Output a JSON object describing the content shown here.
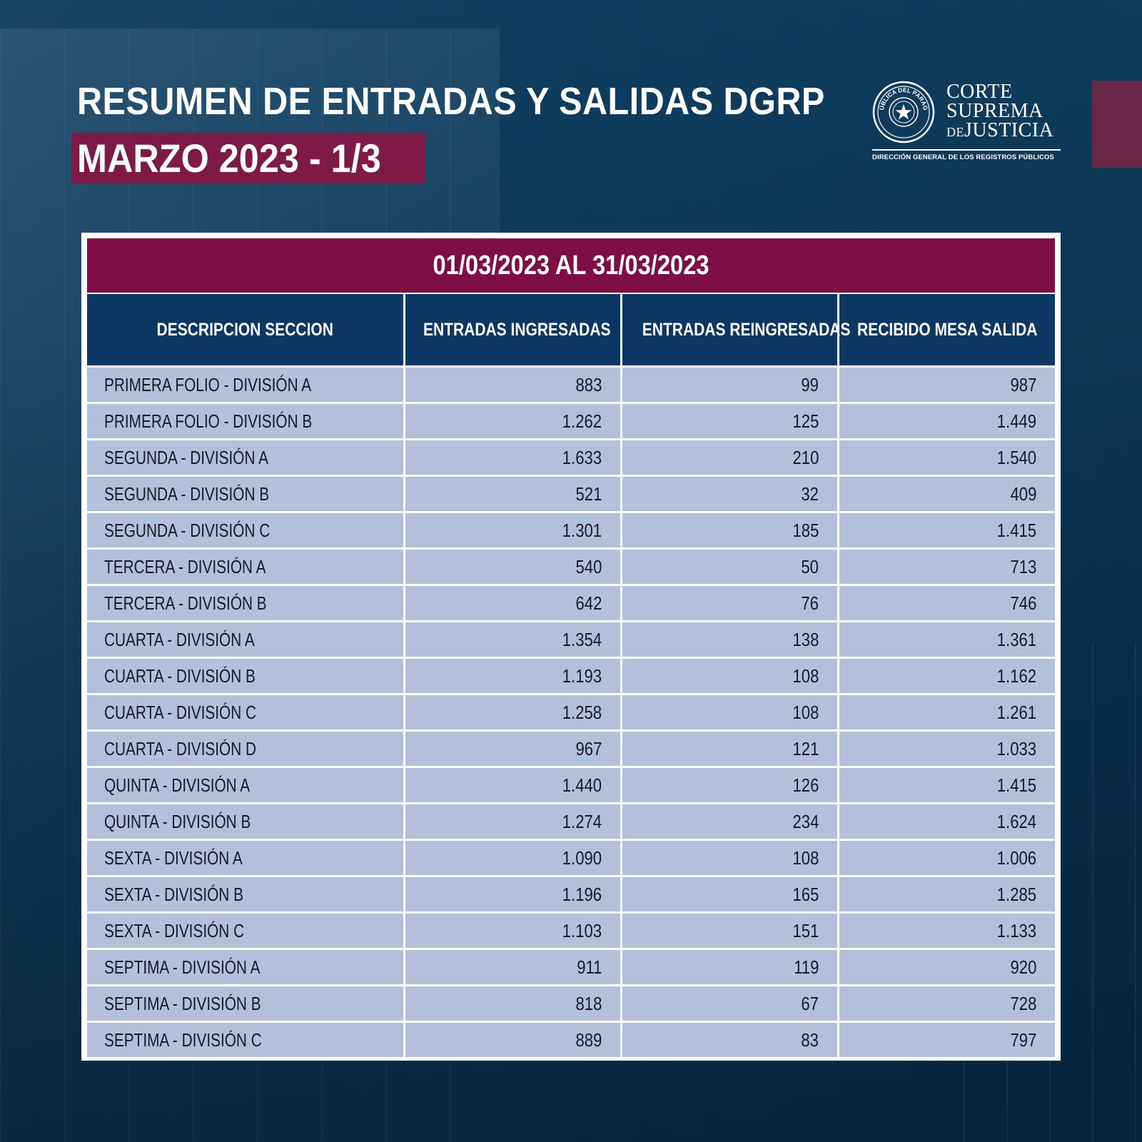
{
  "header": {
    "title": "RESUMEN DE ENTRADAS Y SALIDAS DGRP",
    "subtitle": "MARZO 2023 - 1/3"
  },
  "logo": {
    "line1": "CORTE",
    "line2": "SUPREMA",
    "line3_prefix": "DE",
    "line3_main": "JUSTICIA",
    "seal_text": "REPÚBLICA DEL PARAGUAY",
    "subtitle": "DIRECCIÓN GENERAL DE LOS REGISTROS PÚBLICOS"
  },
  "table": {
    "date_range": "01/03/2023 AL 31/03/2023",
    "columns": [
      "DESCRIPCION SECCION",
      "ENTRADAS INGRESADAS",
      "ENTRADAS REINGRESADAS",
      "RECIBIDO MESA SALIDA"
    ],
    "rows": [
      [
        "PRIMERA FOLIO - DIVISIÓN A",
        "883",
        "99",
        "987"
      ],
      [
        "PRIMERA FOLIO - DIVISIÓN B",
        "1.262",
        "125",
        "1.449"
      ],
      [
        "SEGUNDA - DIVISIÓN A",
        "1.633",
        "210",
        "1.540"
      ],
      [
        "SEGUNDA - DIVISIÓN B",
        "521",
        "32",
        "409"
      ],
      [
        "SEGUNDA - DIVISIÓN C",
        "1.301",
        "185",
        "1.415"
      ],
      [
        "TERCERA - DIVISIÓN A",
        "540",
        "50",
        "713"
      ],
      [
        "TERCERA - DIVISIÓN B",
        "642",
        "76",
        "746"
      ],
      [
        "CUARTA - DIVISIÓN A",
        "1.354",
        "138",
        "1.361"
      ],
      [
        "CUARTA - DIVISIÓN B",
        "1.193",
        "108",
        "1.162"
      ],
      [
        "CUARTA - DIVISIÓN C",
        "1.258",
        "108",
        "1.261"
      ],
      [
        "CUARTA - DIVISIÓN D",
        "967",
        "121",
        "1.033"
      ],
      [
        "QUINTA - DIVISIÓN A",
        "1.440",
        "126",
        "1.415"
      ],
      [
        "QUINTA - DIVISIÓN B",
        "1.274",
        "234",
        "1.624"
      ],
      [
        "SEXTA - DIVISIÓN A",
        "1.090",
        "108",
        "1.006"
      ],
      [
        "SEXTA - DIVISIÓN B",
        "1.196",
        "165",
        "1.285"
      ],
      [
        "SEXTA - DIVISIÓN C",
        "1.103",
        "151",
        "1.133"
      ],
      [
        "SEPTIMA - DIVISIÓN A",
        "911",
        "119",
        "920"
      ],
      [
        "SEPTIMA - DIVISIÓN B",
        "818",
        "67",
        "728"
      ],
      [
        "SEPTIMA - DIVISIÓN C",
        "889",
        "83",
        "797"
      ]
    ]
  },
  "colors": {
    "background": "#0a3352",
    "accent_maroon": "#7e0f46",
    "header_navy": "#0b3762",
    "row_fill": "#b4bfda"
  }
}
